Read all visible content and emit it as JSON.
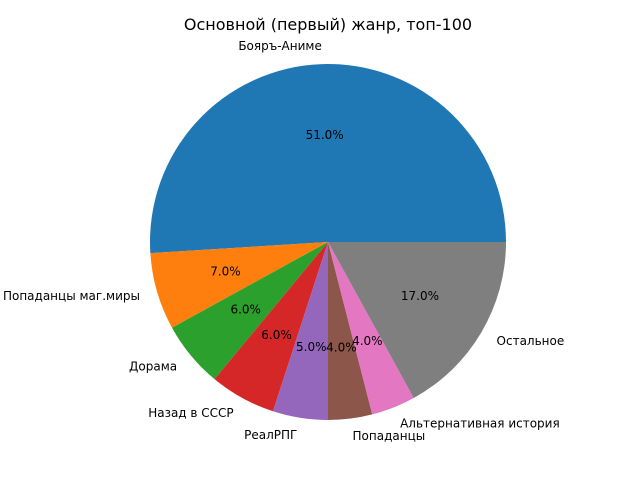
{
  "chart_data": {
    "type": "pie",
    "title": "Основной (первый) жанр, топ-100",
    "start_angle_deg": 0,
    "direction": "counterclockwise",
    "legend": "none",
    "categories": [
      "Бояръ-Аниме",
      "Попаданцы маг.миры",
      "Дорама",
      "Назад в СССР",
      "РеалРПГ",
      "Попаданцы",
      "Альтернативная история",
      "Остальное"
    ],
    "values": [
      51.0,
      7.0,
      6.0,
      6.0,
      5.0,
      4.0,
      4.0,
      17.0
    ],
    "value_labels": [
      "51.0%",
      "7.0%",
      "6.0%",
      "6.0%",
      "5.0%",
      "4.0%",
      "4.0%",
      "17.0%"
    ],
    "colors": [
      "#1f77b4",
      "#ff7f0e",
      "#2ca02c",
      "#d62728",
      "#9467bd",
      "#8c564b",
      "#e377c2",
      "#7f7f7f"
    ]
  }
}
